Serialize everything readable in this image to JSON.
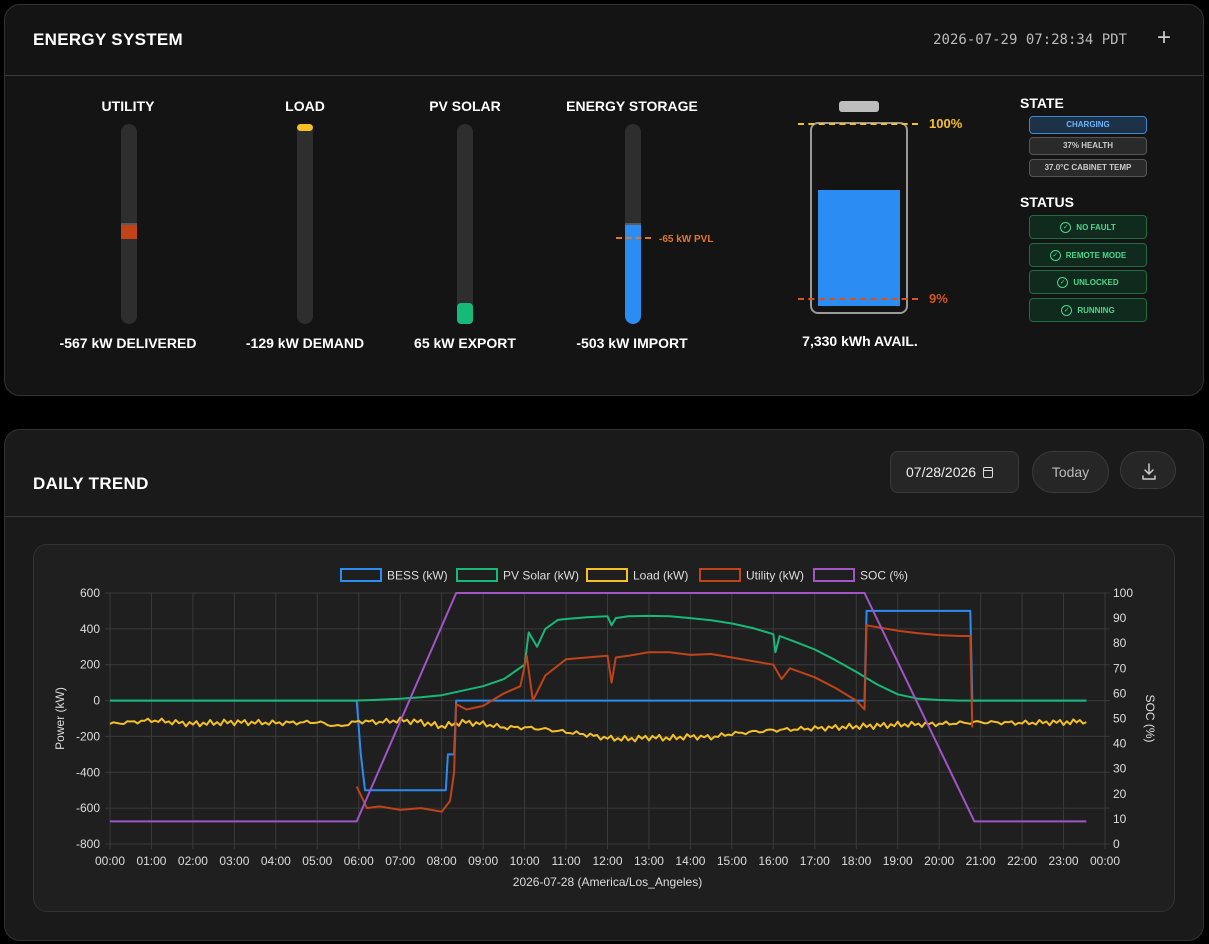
{
  "energy_system": {
    "title": "ENERGY SYSTEM",
    "timestamp": "2026-07-29 07:28:34 PDT",
    "add_label": "+",
    "gauges": {
      "utility": {
        "title": "UTILITY",
        "value_text": "-567 kW DELIVERED",
        "color": "#c0431a"
      },
      "load": {
        "title": "LOAD",
        "value_text": "-129 kW DEMAND",
        "color": "#f5c026"
      },
      "pv_solar": {
        "title": "PV SOLAR",
        "value_text": "65 kW EXPORT",
        "color": "#17b978"
      },
      "energy_storage": {
        "title": "ENERGY STORAGE",
        "value_text": "-503 kW IMPORT",
        "color": "#2b8cf2",
        "pvl_label": "-65 kW PVL"
      }
    },
    "battery": {
      "soc_percent": 62,
      "max_label": "100%",
      "min_label": "9%",
      "max_color": "#f5c026",
      "min_color": "#d9531e",
      "available_text": "7,330 kWh AVAIL."
    },
    "state": {
      "title": "STATE",
      "badges": [
        "CHARGING",
        "37% HEALTH",
        "37.0°C CABINET TEMP"
      ]
    },
    "status": {
      "title": "STATUS",
      "badges": [
        "NO FAULT",
        "REMOTE MODE",
        "UNLOCKED",
        "RUNNING"
      ]
    }
  },
  "daily_trend": {
    "title": "DAILY TREND",
    "date_value": "07/28/2026",
    "today_label": "Today",
    "download_icon": "download-icon",
    "calendar_icon": "calendar-icon"
  },
  "chart_data": {
    "type": "line",
    "xlabel": "2026-07-28 (America/Los_Angeles)",
    "ylabel": "Power (kW)",
    "y2label": "SOC (%)",
    "xlim": [
      0,
      24
    ],
    "ylim": [
      -800,
      600
    ],
    "y2lim": [
      0,
      100
    ],
    "x_ticks": [
      "00:00",
      "01:00",
      "02:00",
      "03:00",
      "04:00",
      "05:00",
      "06:00",
      "07:00",
      "08:00",
      "09:00",
      "10:00",
      "11:00",
      "12:00",
      "13:00",
      "14:00",
      "15:00",
      "16:00",
      "17:00",
      "18:00",
      "19:00",
      "20:00",
      "21:00",
      "22:00",
      "23:00",
      "00:00"
    ],
    "y_ticks": [
      600,
      400,
      200,
      0,
      -200,
      -400,
      -600,
      -800
    ],
    "y2_ticks": [
      100,
      90,
      80,
      70,
      60,
      50,
      40,
      30,
      20,
      10,
      0
    ],
    "grid": true,
    "legend": "top-center",
    "series": [
      {
        "name": "BESS (kW)",
        "axis": "left",
        "color": "#2b8cf2",
        "points": [
          [
            0,
            0
          ],
          [
            5.95,
            0
          ],
          [
            6.05,
            -300
          ],
          [
            6.15,
            -500
          ],
          [
            8.1,
            -500
          ],
          [
            8.15,
            -300
          ],
          [
            8.3,
            -300
          ],
          [
            8.35,
            0
          ],
          [
            18.2,
            0
          ],
          [
            18.25,
            500
          ],
          [
            20.75,
            500
          ],
          [
            20.8,
            0
          ],
          [
            23.55,
            0
          ]
        ]
      },
      {
        "name": "PV Solar (kW)",
        "axis": "left",
        "color": "#17b978",
        "points": [
          [
            0,
            0
          ],
          [
            5.9,
            0
          ],
          [
            6.5,
            5
          ],
          [
            7,
            10
          ],
          [
            7.5,
            18
          ],
          [
            8,
            30
          ],
          [
            8.5,
            55
          ],
          [
            9,
            80
          ],
          [
            9.5,
            120
          ],
          [
            10,
            200
          ],
          [
            10.1,
            380
          ],
          [
            10.3,
            300
          ],
          [
            10.5,
            400
          ],
          [
            10.8,
            450
          ],
          [
            11,
            455
          ],
          [
            11.5,
            465
          ],
          [
            12,
            470
          ],
          [
            12.1,
            420
          ],
          [
            12.2,
            460
          ],
          [
            12.5,
            470
          ],
          [
            13,
            472
          ],
          [
            13.5,
            470
          ],
          [
            14,
            460
          ],
          [
            14.5,
            448
          ],
          [
            15,
            430
          ],
          [
            15.5,
            405
          ],
          [
            16,
            370
          ],
          [
            16.05,
            270
          ],
          [
            16.15,
            360
          ],
          [
            16.5,
            330
          ],
          [
            17,
            285
          ],
          [
            17.5,
            225
          ],
          [
            18,
            160
          ],
          [
            18.5,
            90
          ],
          [
            19,
            35
          ],
          [
            19.5,
            10
          ],
          [
            20,
            3
          ],
          [
            20.5,
            0
          ],
          [
            23.55,
            0
          ]
        ]
      },
      {
        "name": "Load (kW)",
        "axis": "left",
        "color": "#f5c026",
        "points": [
          [
            0,
            -130
          ],
          [
            1,
            -110
          ],
          [
            2,
            -130
          ],
          [
            3,
            -120
          ],
          [
            4,
            -125
          ],
          [
            5,
            -120
          ],
          [
            5.5,
            -145
          ],
          [
            6,
            -115
          ],
          [
            6.5,
            -120
          ],
          [
            7,
            -110
          ],
          [
            7.5,
            -120
          ],
          [
            8,
            -145
          ],
          [
            8.5,
            -120
          ],
          [
            9,
            -130
          ],
          [
            9.5,
            -150
          ],
          [
            10,
            -150
          ],
          [
            10.5,
            -160
          ],
          [
            11,
            -175
          ],
          [
            11.5,
            -190
          ],
          [
            12,
            -210
          ],
          [
            12.5,
            -215
          ],
          [
            13,
            -205
          ],
          [
            13.5,
            -210
          ],
          [
            14,
            -200
          ],
          [
            14.5,
            -205
          ],
          [
            15,
            -185
          ],
          [
            15.5,
            -175
          ],
          [
            16,
            -165
          ],
          [
            16.5,
            -160
          ],
          [
            17,
            -155
          ],
          [
            17.5,
            -150
          ],
          [
            18,
            -145
          ],
          [
            18.5,
            -140
          ],
          [
            19,
            -135
          ],
          [
            20,
            -130
          ],
          [
            21,
            -120
          ],
          [
            22,
            -125
          ],
          [
            23,
            -120
          ],
          [
            23.55,
            -120
          ]
        ]
      },
      {
        "name": "Utility (kW)",
        "axis": "left",
        "color": "#c0431a",
        "points": [
          [
            5.95,
            -480
          ],
          [
            6.2,
            -600
          ],
          [
            6.5,
            -590
          ],
          [
            7,
            -610
          ],
          [
            7.5,
            -600
          ],
          [
            8,
            -620
          ],
          [
            8.2,
            -560
          ],
          [
            8.3,
            -400
          ],
          [
            8.35,
            -20
          ],
          [
            8.6,
            -50
          ],
          [
            9,
            -30
          ],
          [
            9.5,
            40
          ],
          [
            9.9,
            80
          ],
          [
            10.05,
            250
          ],
          [
            10.2,
            0
          ],
          [
            10.5,
            140
          ],
          [
            11,
            230
          ],
          [
            11.5,
            240
          ],
          [
            12,
            250
          ],
          [
            12.1,
            100
          ],
          [
            12.2,
            240
          ],
          [
            12.5,
            250
          ],
          [
            13,
            270
          ],
          [
            13.5,
            270
          ],
          [
            14,
            255
          ],
          [
            14.5,
            260
          ],
          [
            15,
            240
          ],
          [
            15.5,
            220
          ],
          [
            16,
            200
          ],
          [
            16.2,
            120
          ],
          [
            16.4,
            180
          ],
          [
            17,
            130
          ],
          [
            17.5,
            70
          ],
          [
            18,
            0
          ],
          [
            18.2,
            -50
          ],
          [
            18.25,
            420
          ],
          [
            18.5,
            410
          ],
          [
            19,
            390
          ],
          [
            19.5,
            375
          ],
          [
            20,
            365
          ],
          [
            20.5,
            360
          ],
          [
            20.75,
            360
          ],
          [
            20.8,
            -150
          ]
        ]
      },
      {
        "name": "SOC (%)",
        "axis": "right",
        "color": "#a155c7",
        "points": [
          [
            0,
            9
          ],
          [
            5.95,
            9
          ],
          [
            8.35,
            100
          ],
          [
            18.2,
            100
          ],
          [
            20.85,
            9
          ],
          [
            23.55,
            9
          ]
        ]
      }
    ]
  }
}
